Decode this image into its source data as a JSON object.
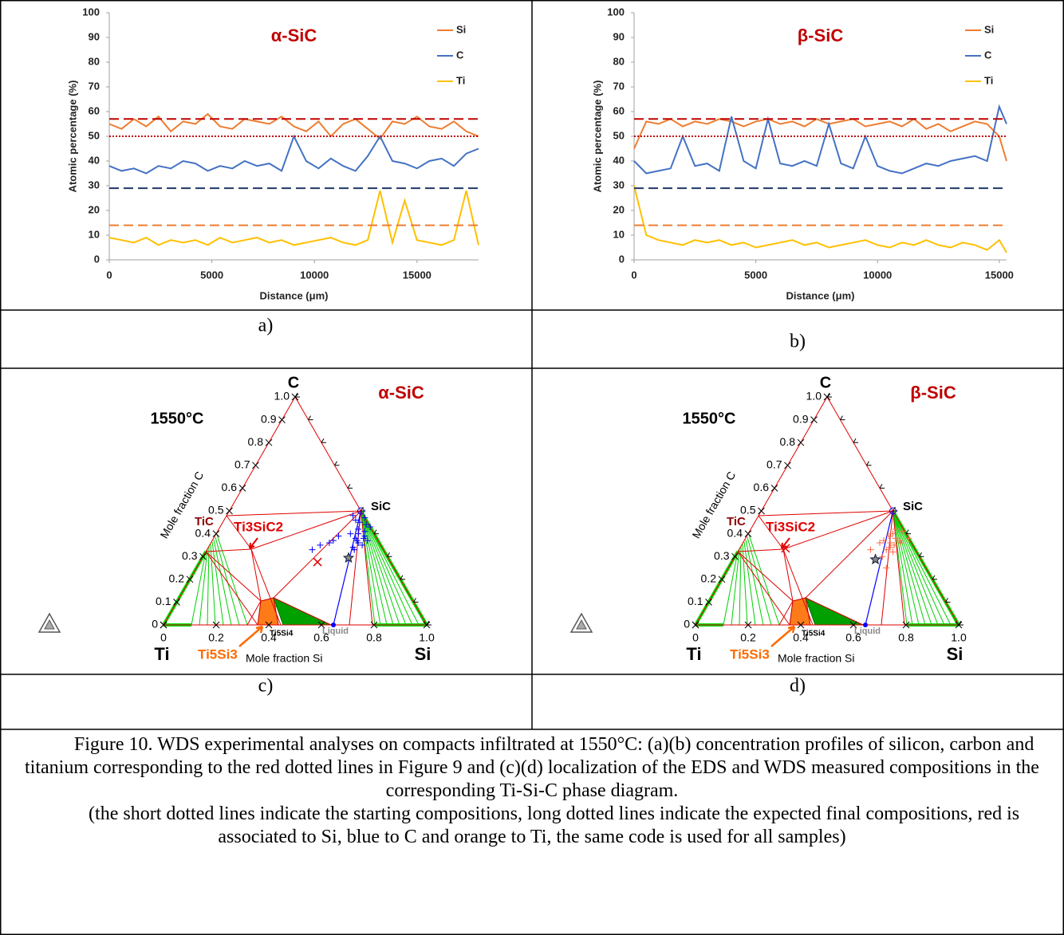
{
  "chart_data": [
    {
      "type": "line",
      "title": "α-SiC",
      "title_color": "#c00000",
      "xlabel": "Distance (μm)",
      "ylabel": "Atomic percentage (%)",
      "x": [
        0,
        600,
        1200,
        1800,
        2400,
        3000,
        3600,
        4200,
        4800,
        5400,
        6000,
        6600,
        7200,
        7800,
        8400,
        9000,
        9600,
        10200,
        10800,
        11400,
        12000,
        12600,
        13200,
        13800,
        14400,
        15000,
        15600,
        16200,
        16800,
        17400,
        18000
      ],
      "series": [
        {
          "name": "Si",
          "color": "#ed7d31",
          "values": [
            55,
            53,
            57,
            54,
            58,
            52,
            56,
            55,
            59,
            54,
            53,
            57,
            56,
            55,
            58,
            54,
            52,
            56,
            50,
            55,
            57,
            53,
            49,
            56,
            55,
            58,
            54,
            53,
            56,
            52,
            50
          ]
        },
        {
          "name": "C",
          "color": "#4472c4",
          "values": [
            38,
            36,
            37,
            35,
            38,
            37,
            40,
            39,
            36,
            38,
            37,
            40,
            38,
            39,
            36,
            50,
            40,
            37,
            41,
            38,
            36,
            42,
            50,
            40,
            39,
            37,
            40,
            41,
            38,
            43,
            45
          ]
        },
        {
          "name": "Ti",
          "color": "#ffc000",
          "values": [
            9,
            8,
            7,
            9,
            6,
            8,
            7,
            8,
            6,
            9,
            7,
            8,
            9,
            7,
            8,
            6,
            7,
            8,
            9,
            7,
            6,
            8,
            28,
            7,
            24,
            8,
            7,
            6,
            8,
            28,
            6
          ]
        }
      ],
      "xlim": [
        0,
        18000
      ],
      "xticks": [
        0,
        5000,
        10000,
        15000
      ],
      "ylim": [
        0,
        100
      ],
      "yticks": [
        0,
        10,
        20,
        30,
        40,
        50,
        60,
        70,
        80,
        90,
        100
      ],
      "reference_lines": [
        {
          "value": 57,
          "color": "#c00000",
          "style": "dashed"
        },
        {
          "value": 50,
          "color": "#c00000",
          "style": "dotted"
        },
        {
          "value": 29,
          "color": "#1f3864",
          "style": "dashed"
        },
        {
          "value": 14,
          "color": "#ed7d31",
          "style": "dashed"
        }
      ],
      "legend": "upper right"
    },
    {
      "type": "line",
      "title": "β-SiC",
      "title_color": "#c00000",
      "xlabel": "Distance (μm)",
      "ylabel": "Atomic percentage (%)",
      "x": [
        0,
        500,
        1000,
        1500,
        2000,
        2500,
        3000,
        3500,
        4000,
        4500,
        5000,
        5500,
        6000,
        6500,
        7000,
        7500,
        8000,
        8500,
        9000,
        9500,
        10000,
        10500,
        11000,
        11500,
        12000,
        12500,
        13000,
        13500,
        14000,
        14500,
        15000,
        15300
      ],
      "series": [
        {
          "name": "Si",
          "color": "#ed7d31",
          "values": [
            45,
            56,
            55,
            57,
            54,
            56,
            55,
            57,
            56,
            54,
            56,
            57,
            55,
            56,
            54,
            57,
            55,
            56,
            57,
            54,
            55,
            56,
            54,
            57,
            53,
            55,
            52,
            54,
            56,
            55,
            50,
            40
          ]
        },
        {
          "name": "C",
          "color": "#4472c4",
          "values": [
            40,
            35,
            36,
            37,
            50,
            38,
            39,
            36,
            58,
            40,
            37,
            57,
            39,
            38,
            40,
            38,
            55,
            39,
            37,
            50,
            38,
            36,
            35,
            37,
            39,
            38,
            40,
            41,
            42,
            40,
            62,
            55
          ]
        },
        {
          "name": "Ti",
          "color": "#ffc000",
          "values": [
            30,
            10,
            8,
            7,
            6,
            8,
            7,
            8,
            6,
            7,
            5,
            6,
            7,
            8,
            6,
            7,
            5,
            6,
            7,
            8,
            6,
            5,
            7,
            6,
            8,
            6,
            5,
            7,
            6,
            4,
            8,
            3
          ]
        }
      ],
      "xlim": [
        0,
        15300
      ],
      "xticks": [
        0,
        5000,
        10000,
        15000
      ],
      "ylim": [
        0,
        100
      ],
      "yticks": [
        0,
        10,
        20,
        30,
        40,
        50,
        60,
        70,
        80,
        90,
        100
      ],
      "reference_lines": [
        {
          "value": 57,
          "color": "#c00000",
          "style": "dashed"
        },
        {
          "value": 50,
          "color": "#c00000",
          "style": "dotted"
        },
        {
          "value": 29,
          "color": "#1f3864",
          "style": "dashed"
        },
        {
          "value": 14,
          "color": "#ed7d31",
          "style": "dashed"
        }
      ],
      "legend": "upper right"
    },
    {
      "type": "ternary",
      "title": "α-SiC",
      "title_color": "#c00000",
      "temperature": "1550°C",
      "xlabel": "Mole fraction Si",
      "ylabel": "Mole fraction C",
      "corner_labels": {
        "top": "C",
        "left": "Ti",
        "right": "Si"
      },
      "phase_labels": [
        "SiC",
        "TiC",
        "Ti3SiC2",
        "Ti5Si3",
        "Ti5Si4",
        "Liquid"
      ],
      "xlim": [
        0,
        1
      ],
      "ylim": [
        0,
        1
      ],
      "xticks": [
        0,
        0.2,
        0.4,
        0.6,
        0.8,
        {
          "value": 1,
          "label": "1.0"
        }
      ],
      "yticks": [
        {
          "value": 1,
          "label": "1.0"
        },
        0.9,
        0.8,
        0.7,
        0.6,
        0.5,
        0.4,
        0.3,
        0.2,
        0.1,
        0
      ],
      "series": [
        {
          "color": "#0000ff",
          "marker": "plus",
          "x": [
            0.55,
            0.56,
            0.57,
            0.54,
            0.58,
            0.53,
            0.55,
            0.57,
            0.56,
            0.52,
            0.59,
            0.55,
            0.54,
            0.57,
            0.53,
            0.5,
            0.48,
            0.47,
            0.45,
            0.42,
            0.4,
            0.46,
            0.51,
            0.56
          ],
          "y": [
            0.37,
            0.36,
            0.38,
            0.4,
            0.35,
            0.42,
            0.34,
            0.39,
            0.41,
            0.45,
            0.37,
            0.44,
            0.38,
            0.43,
            0.47,
            0.46,
            0.48,
            0.39,
            0.36,
            0.35,
            0.33,
            0.37,
            0.4,
            0.33
          ]
        },
        {
          "color": "#e00000",
          "marker": "x",
          "x": [
            0.447
          ],
          "y": [
            0.276
          ]
        },
        {
          "color": "#1f2a44",
          "marker": "star",
          "x": [
            0.556
          ],
          "y": [
            0.294
          ]
        }
      ]
    },
    {
      "type": "ternary",
      "title": "β-SiC",
      "title_color": "#c00000",
      "temperature": "1550°C",
      "xlabel": "Mole fraction Si",
      "ylabel": "Mole fraction C",
      "corner_labels": {
        "top": "C",
        "left": "Ti",
        "right": "Si"
      },
      "phase_labels": [
        "SiC",
        "TiC",
        "Ti3SiC2",
        "Ti5Si3",
        "Ti5Si4",
        "Liquid"
      ],
      "xlim": [
        0,
        1
      ],
      "ylim": [
        0,
        1
      ],
      "xticks": [
        0,
        0.2,
        0.4,
        0.6,
        0.8,
        {
          "value": 1,
          "label": "1.0"
        }
      ],
      "yticks": [
        {
          "value": 1,
          "label": "1.0"
        },
        0.9,
        0.8,
        0.7,
        0.6,
        0.5,
        0.4,
        0.3,
        0.2,
        0.1,
        0
      ],
      "series": [
        {
          "color": "#ff6a4a",
          "marker": "plus",
          "x": [
            0.56,
            0.57,
            0.58,
            0.55,
            0.59,
            0.54,
            0.56,
            0.58,
            0.57,
            0.53,
            0.6,
            0.55,
            0.52,
            0.56,
            0.59,
            0.5,
            0.62,
            0.6
          ],
          "y": [
            0.36,
            0.38,
            0.35,
            0.4,
            0.37,
            0.39,
            0.33,
            0.41,
            0.34,
            0.37,
            0.36,
            0.42,
            0.36,
            0.3,
            0.32,
            0.33,
            0.38,
            0.25
          ]
        },
        {
          "color": "#e00000",
          "marker": "x",
          "x": [
            0.174
          ],
          "y": [
            0.336
          ]
        },
        {
          "color": "#1f2a44",
          "marker": "star",
          "x": [
            0.54
          ],
          "y": [
            0.287
          ]
        }
      ]
    }
  ],
  "panel_labels": [
    "a)",
    "b)",
    "c)",
    "d)"
  ],
  "caption": [
    "Figure 10. WDS experimental analyses on compacts infiltrated at 1550°C: (a)(b) concentration profiles of silicon, carbon and titanium corresponding to the red dotted lines in Figure 9 and (c)(d) localization of the EDS and WDS measured compositions in the corresponding Ti-Si-C phase diagram.",
    "(the short dotted lines indicate the starting compositions, long dotted lines indicate the expected final compositions, red is associated to Si, blue to C and orange to Ti, the same code is used for all samples)"
  ]
}
